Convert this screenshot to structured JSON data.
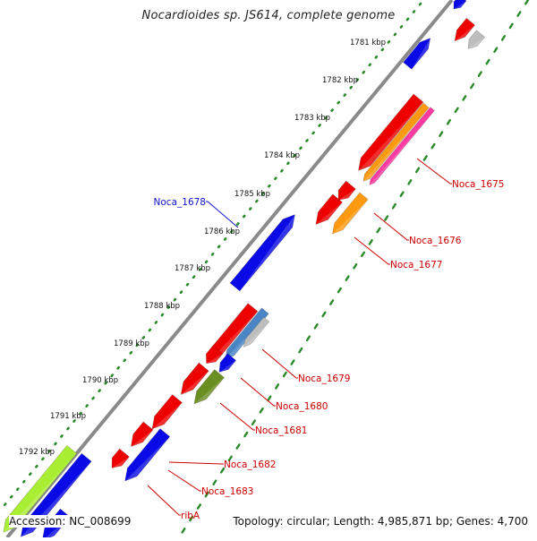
{
  "title": "Nocardioides sp. JS614, complete genome",
  "footer": {
    "accession": "Accession: NC_008699",
    "topology": "Topology: circular; Length: 4,985,871 bp; Genes: 4,700"
  },
  "ruler": {
    "ticks": [
      "1781 kbp",
      "1782 kbp",
      "1783 kbp",
      "1784 kbp",
      "1785 kbp",
      "1786 kbp",
      "1787 kbp",
      "1788 kbp",
      "1789 kbp",
      "1790 kbp",
      "1791 kbp",
      "1792 kbp"
    ]
  },
  "colors": {
    "backbone": "#8a8a8a",
    "ruler_dots": "#2a8a2a",
    "label_red": "#cc0000",
    "label_blue": "#1010cc",
    "red_gene": "#ee0000",
    "blue_gene": "#0a0ae6",
    "orange_gene": "#ff9a10",
    "pink_gene": "#ff3aa0",
    "grey_gene": "#bdbdbd",
    "steel_gene": "#4a86c6",
    "olive_gene": "#6b8e23",
    "lime_gene": "#aaee33"
  },
  "gene_labels": [
    "Noca_1675",
    "Noca_1676",
    "Noca_1677",
    "Noca_1678",
    "Noca_1679",
    "Noca_1680",
    "Noca_1681",
    "Noca_1682",
    "Noca_1683",
    "ribA"
  ]
}
